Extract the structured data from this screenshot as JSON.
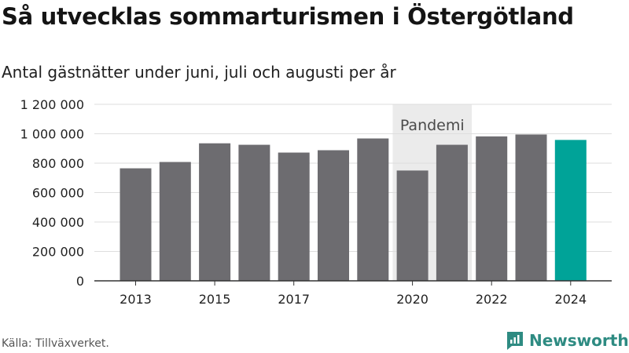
{
  "title": "Så utvecklas sommarturismen i Östergötland",
  "subtitle": "Antal gästnätter under juni, juli och augusti per år",
  "source": "Källa: Tillväxverket.",
  "brand": {
    "name": "Newsworthy",
    "icon": "newsworthy-logo-icon",
    "color": "#2e8b82"
  },
  "chart_data": {
    "type": "bar",
    "categories": [
      "2013",
      "2014",
      "2015",
      "2016",
      "2017",
      "2018",
      "2019",
      "2020",
      "2021",
      "2022",
      "2023",
      "2024"
    ],
    "x_tick_labels": [
      "2013",
      "2015",
      "2017",
      "2020",
      "2022",
      "2024"
    ],
    "values": [
      765000,
      808000,
      935000,
      925000,
      872000,
      888000,
      968000,
      750000,
      925000,
      982000,
      995000,
      958000
    ],
    "ylim": [
      0,
      1200000
    ],
    "y_ticks": [
      0,
      200000,
      400000,
      600000,
      800000,
      1000000,
      1200000
    ],
    "y_tick_labels": [
      "0",
      "200 000",
      "400 000",
      "600 000",
      "800 000",
      "1 000 000",
      "1 200 000"
    ],
    "grid": true,
    "highlight": {
      "category": "2024",
      "color": "#00a398"
    },
    "bar_color": "#6d6c70",
    "annotation": {
      "label": "Pandemi",
      "from": "2020",
      "to": "2021",
      "shade_color": "#ebebeb"
    }
  }
}
